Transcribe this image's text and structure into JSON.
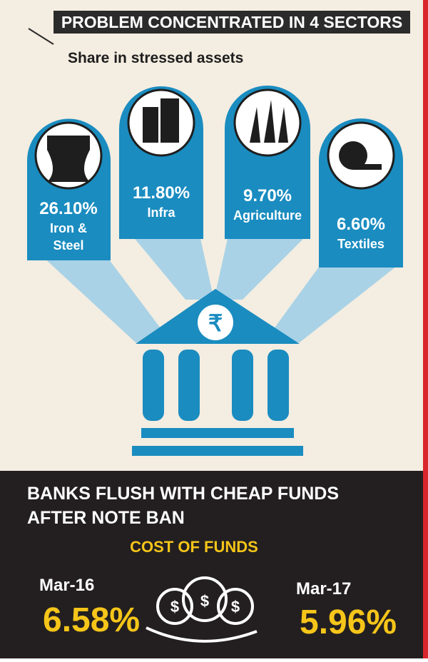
{
  "header": {
    "title": "PROBLEM CONCENTRATED IN 4 SECTORS",
    "subtitle": "Share in stressed assets"
  },
  "sectors": [
    {
      "share": "26.10%",
      "name_lines": [
        "Iron &",
        "Steel"
      ]
    },
    {
      "share": "11.80%",
      "name_lines": [
        "Infra"
      ]
    },
    {
      "share": "9.70%",
      "name_lines": [
        "Agriculture"
      ]
    },
    {
      "share": "6.60%",
      "name_lines": [
        "Textiles"
      ]
    }
  ],
  "funds": {
    "title_lines": [
      "BANKS FLUSH WITH CHEAP FUNDS",
      "AFTER NOTE BAN"
    ],
    "subtitle": "COST OF FUNDS",
    "periods": [
      {
        "label": "Mar-16",
        "value": "6.58%"
      },
      {
        "label": "Mar-17",
        "value": "5.96%"
      }
    ]
  }
}
